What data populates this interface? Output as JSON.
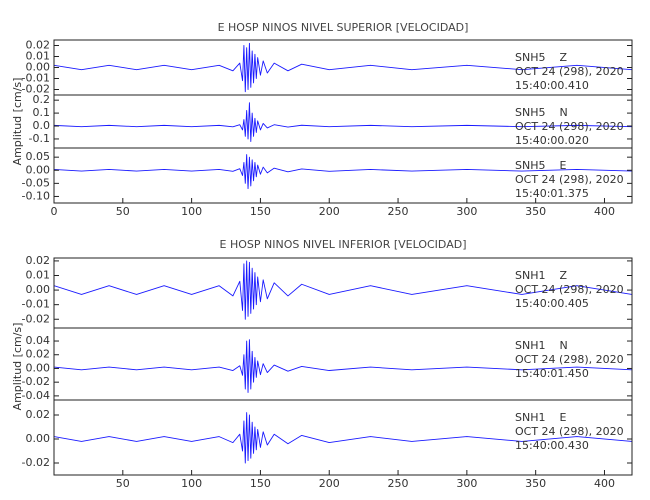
{
  "chart_data": [
    {
      "type": "line",
      "title": "E HOSP NINOS NIVEL SUPERIOR [VELOCIDAD]",
      "y_label": "Amplitud [cm/s]",
      "xlim": [
        0,
        420
      ],
      "xticks": [
        0,
        50,
        100,
        150,
        200,
        250,
        300,
        350,
        400
      ],
      "color": "#1a1aff",
      "x": [
        0,
        20,
        40,
        60,
        80,
        100,
        120,
        130,
        135,
        137,
        138,
        139,
        140,
        141,
        142,
        143,
        144,
        145,
        146,
        147,
        148,
        150,
        152,
        155,
        160,
        170,
        180,
        200,
        230,
        260,
        300,
        340,
        380,
        420
      ],
      "panels": [
        {
          "ylim": [
            -0.025,
            0.025
          ],
          "yticks": [
            0.02,
            0.01,
            {
              "value": 0,
              "label": "0.00"
            },
            -0.01,
            -0.02
          ],
          "labels": [
            "SNH5    Z",
            "OCT 24 (298), 2020",
            "15:40:00.410"
          ],
          "values": [
            0.002,
            -0.002,
            0.002,
            -0.002,
            0.002,
            -0.002,
            0.002,
            -0.003,
            0.004,
            -0.012,
            0.02,
            -0.022,
            0.018,
            -0.02,
            0.022,
            -0.018,
            0.015,
            -0.014,
            0.012,
            -0.01,
            0.009,
            -0.007,
            0.006,
            -0.005,
            0.004,
            -0.003,
            0.003,
            -0.002,
            0.002,
            -0.002,
            0.002,
            -0.002,
            0.002,
            -0.002
          ]
        },
        {
          "ylim": [
            -0.17,
            0.24
          ],
          "yticks": [
            0.2,
            0.1,
            {
              "value": 0,
              "label": "0.0"
            },
            -0.1
          ],
          "labels": [
            "SNH5    N",
            "OCT 24 (298), 2020",
            "15:40:00.020"
          ],
          "values": [
            0.005,
            -0.005,
            0.005,
            -0.005,
            0.005,
            -0.005,
            0.005,
            -0.006,
            0.01,
            -0.03,
            0.05,
            -0.08,
            0.12,
            -0.1,
            0.18,
            -0.12,
            0.1,
            -0.08,
            0.06,
            -0.05,
            0.04,
            -0.03,
            0.02,
            -0.015,
            0.01,
            -0.008,
            0.006,
            -0.005,
            0.005,
            -0.005,
            0.005,
            -0.005,
            0.005,
            -0.005
          ]
        },
        {
          "ylim": [
            -0.125,
            0.085
          ],
          "yticks": [
            0.05,
            {
              "value": 0,
              "label": "0.00"
            },
            -0.05,
            {
              "value": -0.1,
              "label": "-0.10"
            }
          ],
          "labels": [
            "SNH5    E",
            "OCT 24 (298), 2020",
            "15:40:01.375"
          ],
          "values": [
            0.003,
            -0.003,
            0.003,
            -0.003,
            0.003,
            -0.003,
            0.003,
            -0.004,
            0.006,
            -0.02,
            0.03,
            -0.05,
            0.06,
            -0.07,
            0.05,
            -0.06,
            0.04,
            -0.04,
            0.03,
            -0.025,
            0.02,
            -0.015,
            0.012,
            -0.01,
            0.008,
            -0.006,
            0.005,
            -0.004,
            0.003,
            -0.003,
            0.003,
            -0.003,
            0.003,
            -0.003
          ]
        }
      ]
    },
    {
      "type": "line",
      "title": "E HOSP NINOS NIVEL INFERIOR [VELOCIDAD]",
      "y_label": "Amplitud [cm/s]",
      "xlim": [
        0,
        420
      ],
      "xticks": [
        50,
        100,
        150,
        200,
        250,
        300,
        350,
        400
      ],
      "color": "#1a1aff",
      "x": [
        0,
        20,
        40,
        60,
        80,
        100,
        120,
        130,
        135,
        137,
        138,
        139,
        140,
        141,
        142,
        143,
        144,
        145,
        146,
        147,
        148,
        150,
        152,
        155,
        160,
        170,
        180,
        200,
        230,
        260,
        300,
        340,
        380,
        420
      ],
      "panels": [
        {
          "ylim": [
            -0.026,
            0.022
          ],
          "yticks": [
            0.02,
            0.01,
            {
              "value": 0,
              "label": "0.00"
            },
            -0.01,
            -0.02
          ],
          "labels": [
            "SNH1    Z",
            "OCT 24 (298), 2020",
            "15:40:00.405"
          ],
          "values": [
            0.003,
            -0.003,
            0.003,
            -0.003,
            0.003,
            -0.003,
            0.003,
            -0.004,
            0.006,
            -0.014,
            0.018,
            -0.02,
            0.02,
            -0.018,
            0.019,
            -0.016,
            0.015,
            -0.013,
            0.012,
            -0.01,
            0.009,
            -0.008,
            0.007,
            -0.006,
            0.005,
            -0.004,
            0.004,
            -0.003,
            0.003,
            -0.003,
            0.003,
            -0.003,
            0.003,
            -0.003
          ]
        },
        {
          "ylim": [
            -0.046,
            0.059
          ],
          "yticks": [
            0.04,
            0.02,
            {
              "value": 0,
              "label": "0.00"
            },
            -0.02,
            -0.04
          ],
          "labels": [
            "SNH1    N",
            "OCT 24 (298), 2020",
            "15:40:01.450"
          ],
          "values": [
            0.002,
            -0.002,
            0.002,
            -0.002,
            0.002,
            -0.002,
            0.002,
            -0.003,
            0.004,
            -0.01,
            0.02,
            -0.03,
            0.04,
            -0.035,
            0.042,
            -0.03,
            0.025,
            -0.02,
            0.016,
            -0.013,
            0.011,
            -0.009,
            0.007,
            -0.006,
            0.005,
            -0.004,
            0.003,
            -0.003,
            0.002,
            -0.002,
            0.002,
            -0.002,
            0.002,
            -0.002
          ]
        },
        {
          "ylim": [
            -0.03,
            0.0325
          ],
          "yticks": [
            0.02,
            {
              "value": 0,
              "label": "0.00"
            },
            -0.02
          ],
          "labels": [
            "SNH1    E",
            "OCT 24 (298), 2020",
            "15:40:00.430"
          ],
          "values": [
            0.002,
            -0.002,
            0.002,
            -0.002,
            0.002,
            -0.002,
            0.002,
            -0.003,
            0.004,
            -0.01,
            0.015,
            -0.02,
            0.022,
            -0.018,
            0.02,
            -0.016,
            0.014,
            -0.012,
            0.01,
            -0.009,
            0.008,
            -0.007,
            0.006,
            -0.005,
            0.004,
            -0.004,
            0.003,
            -0.003,
            0.002,
            -0.002,
            0.002,
            -0.002,
            0.002,
            -0.002
          ]
        }
      ]
    }
  ]
}
